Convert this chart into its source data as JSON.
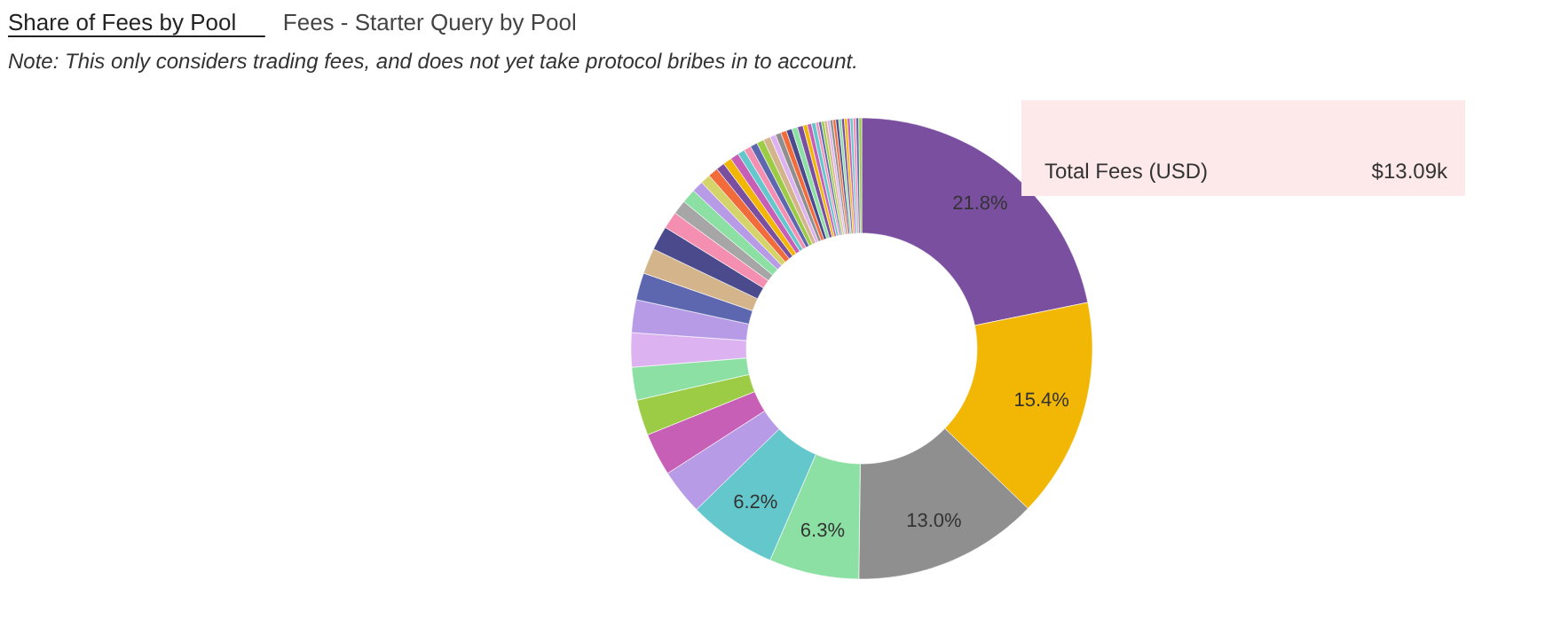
{
  "chart_data": {
    "type": "donut",
    "title": "Share of Fees by Pool",
    "subtitle": "Fees - Starter Query by Pool",
    "annotations": [
      "Note: This only considers trading fees, and does not yet take protocol bribes in to account.",
      "Total Fees (USD)",
      "$13.09k"
    ],
    "categories": [
      null,
      null,
      null,
      null,
      null,
      null,
      null,
      null,
      null,
      null,
      null,
      null,
      null,
      null,
      null,
      null,
      null,
      null,
      null,
      null,
      null,
      null,
      null,
      null,
      null,
      null,
      null,
      null,
      null,
      null,
      null,
      null,
      null,
      null,
      null,
      null,
      null,
      null,
      null,
      null,
      null,
      null,
      null,
      null,
      null,
      null,
      null,
      null,
      null,
      null,
      null,
      null,
      null
    ],
    "values": [
      21.8,
      15.4,
      13.0,
      6.3,
      6.2,
      3.2,
      3.0,
      2.5,
      2.3,
      2.4,
      2.3,
      1.9,
      1.8,
      1.7,
      1.2,
      1.0,
      1.0,
      0.8,
      0.7,
      0.7,
      0.6,
      0.6,
      0.6,
      0.5,
      0.5,
      0.5,
      0.5,
      0.5,
      0.4,
      0.4,
      0.4,
      0.4,
      0.4,
      0.4,
      0.3,
      0.3,
      0.3,
      0.2,
      0.2,
      0.2,
      0.2,
      0.2,
      0.2,
      0.2,
      0.2,
      0.2,
      0.2,
      0.2,
      0.2,
      0.2,
      0.2,
      0.2,
      0.2
    ],
    "value_labels": [
      "21.8%",
      "15.4%",
      "13.0%",
      "6.3%",
      "6.2%",
      null,
      null,
      null,
      null,
      null,
      null,
      null,
      null,
      null,
      null,
      null,
      null,
      null,
      null,
      null,
      null,
      null,
      null,
      null,
      null,
      null,
      null,
      null,
      null,
      null,
      null,
      null,
      null,
      null,
      null,
      null,
      null,
      null,
      null,
      null,
      null,
      null,
      null,
      null,
      null,
      null,
      null,
      null,
      null,
      null,
      null,
      null,
      null
    ],
    "colors": [
      "#7b4fa0",
      "#f2b705",
      "#8f8f8f",
      "#8ce0a4",
      "#63c7cb",
      "#b79be6",
      "#c65fb5",
      "#9ccc45",
      "#8ce0a4",
      "#dcb2f0",
      "#b79be6",
      "#5d67b0",
      "#d4b48a",
      "#4a4a8c",
      "#f48fb1",
      "#a6a6a6",
      "#8ce0a4",
      "#b79be6",
      "#d4d46a",
      "#f26b3a",
      "#7b4fa0",
      "#f2b705",
      "#c65fb5",
      "#63c7cb",
      "#f48fb1",
      "#5d67b0",
      "#9ccc45",
      "#d4b48a",
      "#dcb2f0",
      "#8f8f8f",
      "#f26b3a",
      "#4a4a8c",
      "#8ce0a4",
      "#7b4fa0",
      "#f2b705",
      "#c65fb5",
      "#63c7cb",
      "#f48fb1",
      "#5d67b0",
      "#9ccc45",
      "#d4b48a",
      "#dcb2f0",
      "#8f8f8f",
      "#f26b3a",
      "#4a4a8c",
      "#8ce0a4",
      "#7b4fa0",
      "#f2b705",
      "#c65fb5",
      "#63c7cb",
      "#f48fb1",
      "#5d67b0",
      "#9ccc45"
    ]
  }
}
